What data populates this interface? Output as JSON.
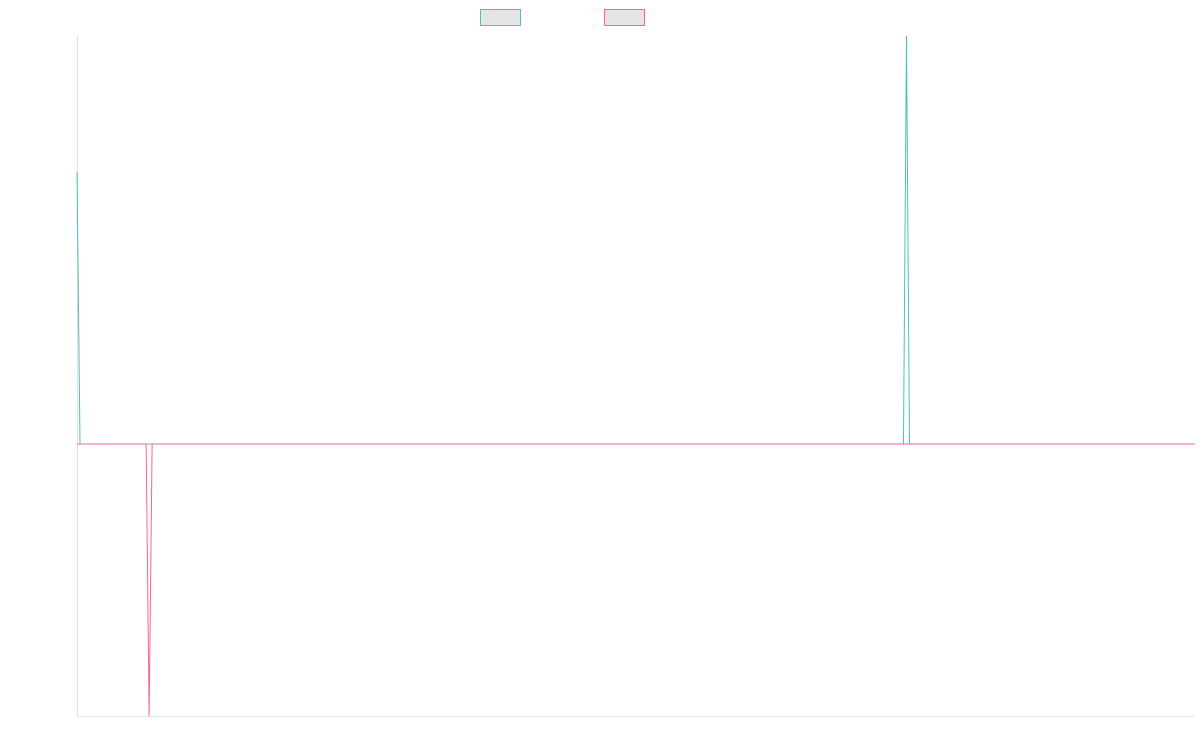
{
  "chart_data": {
    "type": "line",
    "x": [
      0,
      1,
      23,
      24,
      25,
      275,
      276,
      277,
      372
    ],
    "xlim": [
      0,
      372
    ],
    "ylim": [
      -2,
      3
    ],
    "series": [
      {
        "color": "#4bc0c0",
        "values": [
          2,
          0,
          0,
          0,
          0,
          0,
          3,
          0,
          0
        ]
      },
      {
        "color": "#ff6384",
        "values": [
          0,
          0,
          0,
          -2,
          0,
          0,
          0,
          0,
          0
        ]
      }
    ]
  }
}
